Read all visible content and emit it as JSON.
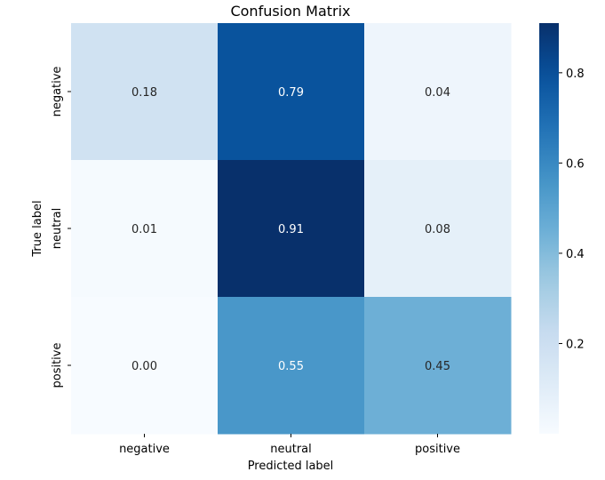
{
  "chart_data": {
    "type": "heatmap",
    "title": "Confusion Matrix",
    "xlabel": "Predicted label",
    "ylabel": "True label",
    "x_categories": [
      "negative",
      "neutral",
      "positive"
    ],
    "y_categories": [
      "negative",
      "neutral",
      "positive"
    ],
    "values": [
      [
        0.18,
        0.79,
        0.04
      ],
      [
        0.01,
        0.91,
        0.08
      ],
      [
        0.0,
        0.55,
        0.45
      ]
    ],
    "value_labels": [
      [
        "0.18",
        "0.79",
        "0.04"
      ],
      [
        "0.01",
        "0.91",
        "0.08"
      ],
      [
        "0.00",
        "0.55",
        "0.45"
      ]
    ],
    "colormap": "Blues",
    "colorbar": {
      "vmin": 0.0,
      "vmax": 0.91,
      "ticks": [
        0.2,
        0.4,
        0.6,
        0.8
      ],
      "tick_labels": [
        "0.2",
        "0.4",
        "0.6",
        "0.8"
      ]
    },
    "colors": {
      "light": "#f7fbff",
      "dark": "#08306b"
    }
  }
}
